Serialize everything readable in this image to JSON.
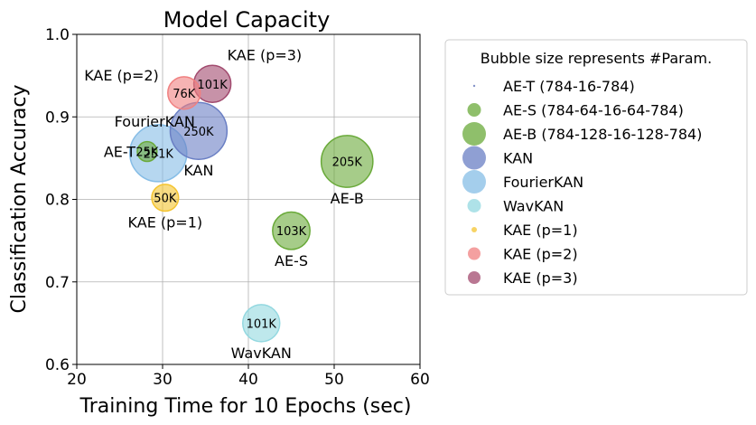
{
  "chart_data": {
    "type": "scatter",
    "subtype": "bubble",
    "title": "Model Capacity",
    "xlabel": "Training Time for 10 Epochs (sec)",
    "ylabel": "Classification Accuracy",
    "xlim": [
      20,
      60
    ],
    "ylim": [
      0.6,
      1.0
    ],
    "xticks": [
      20,
      30,
      40,
      50,
      60
    ],
    "xtick_labels": [
      "20",
      "30",
      "40",
      "50",
      "60"
    ],
    "yticks": [
      0.6,
      0.7,
      0.8,
      0.9,
      1.0
    ],
    "ytick_labels": [
      "0.6",
      "0.7",
      "0.8",
      "0.9",
      "1.0"
    ],
    "grid": true,
    "legend": {
      "title": "Bubble size represents #Param.",
      "placement": "outside-right",
      "entries": [
        {
          "label": "AE-T (784-16-784)",
          "color": "#5b6fb5",
          "marker": "tiny"
        },
        {
          "label": "AE-S (784-64-16-64-784)",
          "color": "#6aaa3a",
          "marker": "medium"
        },
        {
          "label": "AE-B (784-128-16-128-784)",
          "color": "#6aaa3a",
          "marker": "large"
        },
        {
          "label": "KAN",
          "color": "#6a7fc4",
          "marker": "large"
        },
        {
          "label": "FourierKAN",
          "color": "#86bde6",
          "marker": "large"
        },
        {
          "label": "WavKAN",
          "color": "#93d8e0",
          "marker": "medium"
        },
        {
          "label": "KAE (p=1)",
          "color": "#f4c430",
          "marker": "small"
        },
        {
          "label": "KAE (p=2)",
          "color": "#f08080",
          "marker": "medium-small"
        },
        {
          "label": "KAE (p=3)",
          "color": "#a14a6e",
          "marker": "medium-small"
        }
      ]
    },
    "points": [
      {
        "name": "AE-T",
        "x": 28.2,
        "y": 0.858,
        "params_k": 25,
        "size_label": "25K",
        "color": "#6aaa3a",
        "name_pos": "left"
      },
      {
        "name": "AE-S",
        "x": 45.0,
        "y": 0.762,
        "params_k": 103,
        "size_label": "103K",
        "color": "#6aaa3a",
        "name_pos": "below"
      },
      {
        "name": "AE-B",
        "x": 51.5,
        "y": 0.846,
        "params_k": 205,
        "size_label": "205K",
        "color": "#6aaa3a",
        "name_pos": "below"
      },
      {
        "name": "KAN",
        "x": 34.2,
        "y": 0.883,
        "params_k": 250,
        "size_label": "250K",
        "color": "#6a7fc4",
        "name_pos": "below"
      },
      {
        "name": "FourierKAN",
        "x": 29.5,
        "y": 0.856,
        "params_k": 251,
        "size_label": "251K",
        "color": "#86bde6",
        "name_pos": "above"
      },
      {
        "name": "WavKAN",
        "x": 41.5,
        "y": 0.65,
        "params_k": 101,
        "size_label": "101K",
        "color": "#93d8e0",
        "name_pos": "below"
      },
      {
        "name": "KAE (p=1)",
        "x": 30.3,
        "y": 0.802,
        "params_k": 50,
        "size_label": "50K",
        "color": "#f4c430",
        "name_pos": "below"
      },
      {
        "name": "KAE (p=2)",
        "x": 32.5,
        "y": 0.929,
        "params_k": 76,
        "size_label": "76K",
        "color": "#f08080",
        "name_pos": "upper-left"
      },
      {
        "name": "KAE (p=3)",
        "x": 35.8,
        "y": 0.94,
        "params_k": 101,
        "size_label": "101K",
        "color": "#a14a6e",
        "name_pos": "upper-right"
      }
    ]
  }
}
